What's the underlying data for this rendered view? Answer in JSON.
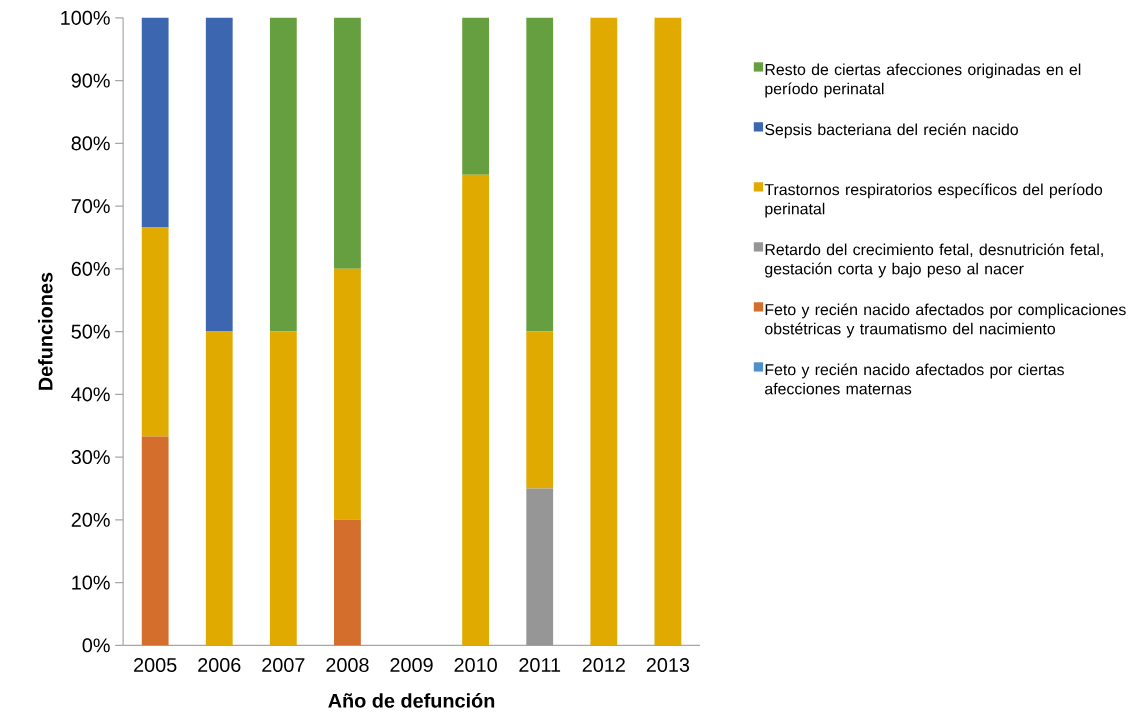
{
  "chart_data": {
    "type": "bar",
    "stacked": true,
    "xlabel": "Año de defunción",
    "ylabel": "Defunciones",
    "categories": [
      "2005",
      "2006",
      "2007",
      "2008",
      "2009",
      "2010",
      "2011",
      "2012",
      "2013"
    ],
    "series": [
      {
        "name": "Feto y recién nacido afectados por ciertas afecciones maternas",
        "color": "#4f8fca",
        "values": [
          0,
          0,
          0,
          0,
          0,
          0,
          0,
          0,
          0
        ]
      },
      {
        "name": "Feto y recién nacido afectados por complicaciones obstétricas y traumatismo del nacimiento",
        "color": "#d46e2d",
        "values": [
          33.3,
          0,
          0,
          20,
          0,
          0,
          0,
          0,
          0
        ]
      },
      {
        "name": "Retardo del crecimiento fetal, desnutrición fetal, gestación corta y bajo peso al nacer",
        "color": "#969696",
        "values": [
          0,
          0,
          0,
          0,
          0,
          0,
          25,
          0,
          0
        ]
      },
      {
        "name": "Trastornos respiratorios específicos del período perinatal",
        "color": "#e0aa00",
        "values": [
          33.3,
          50,
          50,
          40,
          0,
          75,
          25,
          100,
          100
        ]
      },
      {
        "name": "Sepsis bacteriana del recién nacido",
        "color": "#3c66af",
        "values": [
          33.4,
          50,
          0,
          0,
          0,
          0,
          0,
          0,
          0
        ]
      },
      {
        "name": "Resto de ciertas afecciones originadas en el período perinatal",
        "color": "#669f40",
        "values": [
          0,
          0,
          50,
          40,
          0,
          25,
          50,
          0,
          0
        ]
      }
    ],
    "ylim": [
      0,
      100
    ],
    "yticks": [
      {
        "value": 0,
        "label": "0%"
      },
      {
        "value": 10,
        "label": "10%"
      },
      {
        "value": 20,
        "label": "20%"
      },
      {
        "value": 30,
        "label": "30%"
      },
      {
        "value": 40,
        "label": "40%"
      },
      {
        "value": 50,
        "label": "50%"
      },
      {
        "value": 60,
        "label": "60%"
      },
      {
        "value": 70,
        "label": "70%"
      },
      {
        "value": 80,
        "label": "80%"
      },
      {
        "value": 90,
        "label": "90%"
      },
      {
        "value": 100,
        "label": "100%"
      }
    ],
    "legend": "right",
    "grid": false
  }
}
